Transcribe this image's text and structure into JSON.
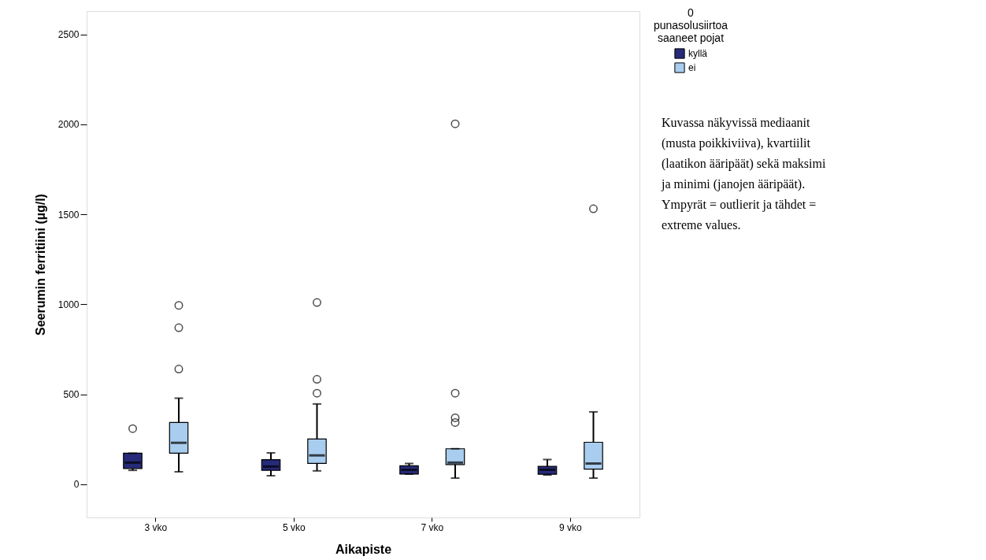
{
  "chart_data": {
    "type": "box",
    "xlabel": "Aikapiste",
    "ylabel": "Seerumin ferritiini (µg/l)",
    "legend_title": "0\npunasolusiirtoa\nsaaneet pojat",
    "legend": "top right",
    "categories": [
      "3 vko",
      "5 vko",
      "7 vko",
      "9 vko"
    ],
    "ylim": [
      -185,
      2630
    ],
    "yticks": [
      0,
      500,
      1000,
      1500,
      2000,
      2500
    ],
    "grid": false,
    "series": [
      {
        "name": "kyllä",
        "color": "#262a78",
        "boxes": [
          {
            "low": 77,
            "q1": 87,
            "median": 120,
            "q3": 172,
            "high": 172,
            "outliers": [
              309
            ]
          },
          {
            "low": 47,
            "q1": 77,
            "median": 98,
            "q3": 136,
            "high": 174
          },
          {
            "low": 56,
            "q1": 56,
            "median": 80,
            "q3": 102,
            "high": 115
          },
          {
            "low": 51,
            "q1": 55,
            "median": 80,
            "q3": 99,
            "high": 137
          }
        ]
      },
      {
        "name": "ei",
        "color": "#a8cdee",
        "boxes": [
          {
            "low": 69,
            "q1": 172,
            "median": 230,
            "q3": 343,
            "high": 478,
            "outliers": [
              640,
              870,
              994
            ]
          },
          {
            "low": 74,
            "q1": 115,
            "median": 160,
            "q3": 251,
            "high": 446,
            "outliers": [
              506,
              583,
              1010
            ]
          },
          {
            "low": 34,
            "q1": 109,
            "median": 120,
            "q3": 197,
            "high": 197,
            "outliers": [
              343,
              369,
              506,
              2003
            ]
          },
          {
            "low": 34,
            "q1": 84,
            "median": 115,
            "q3": 233,
            "high": 402,
            "outliers": [
              1531
            ]
          }
        ]
      }
    ],
    "annotations": [
      "Kuvassa näkyvissä mediaanit (musta poikkiviiva), kvartiilit (laatikon ääripäät) sekä maksimi ja minimi (janojen ääripäät). Ympyrät = outlierit ja tähdet = extreme values."
    ]
  }
}
